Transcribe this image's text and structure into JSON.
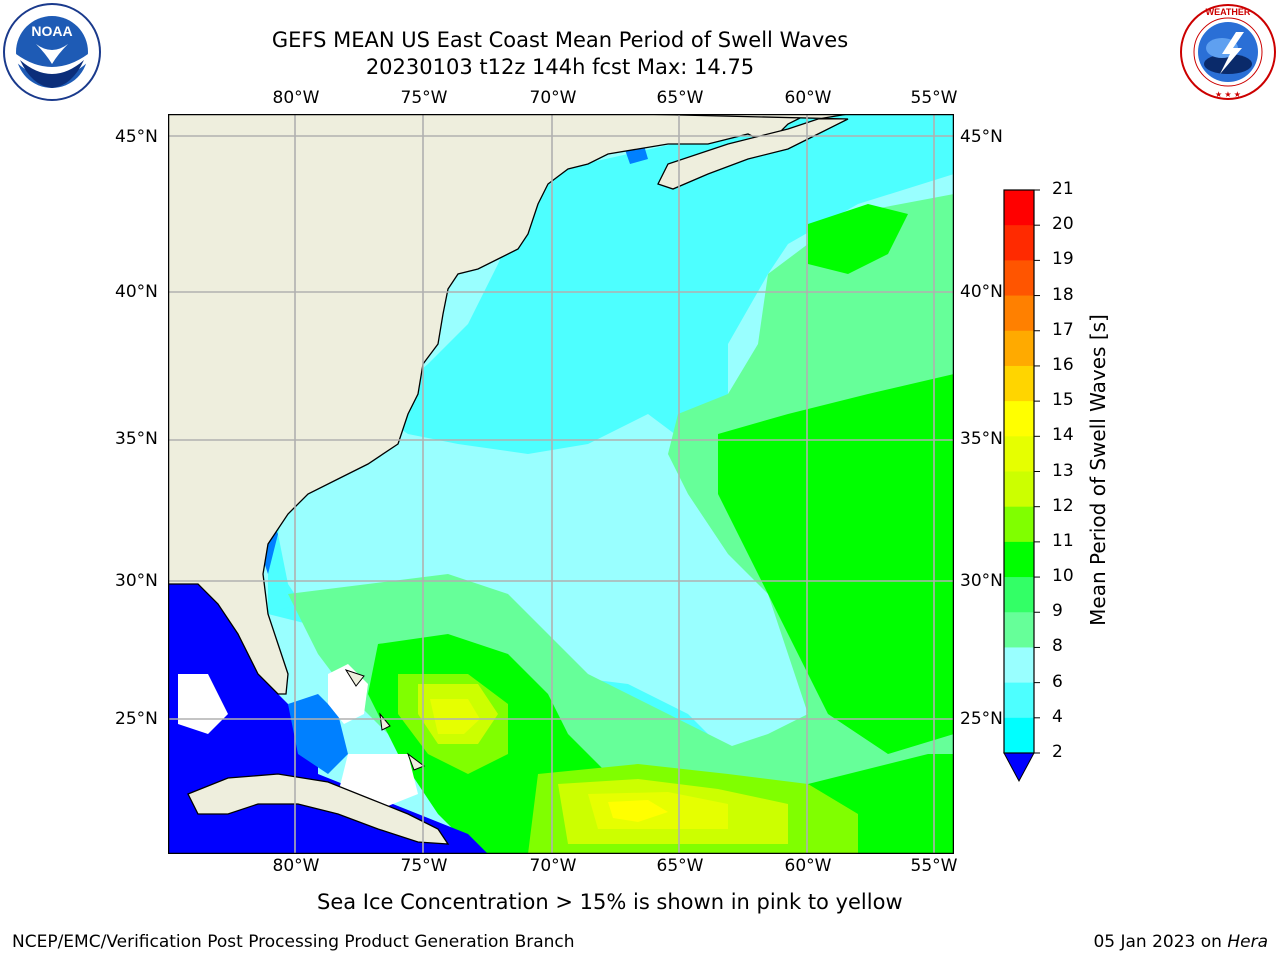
{
  "title": {
    "line1": "GEFS MEAN US East Coast Mean Period of Swell Waves",
    "line2": "20230103 t12z 144h fcst   Max: 14.75"
  },
  "logos": {
    "left": {
      "icon": "noaa-logo-icon",
      "text": "NOAA",
      "ring_text": "NATIONAL OCEANIC AND ATMOSPHERIC ADMINISTRATION · U.S. DEPARTMENT OF COMMERCE"
    },
    "right": {
      "icon": "nws-logo-icon",
      "ring_text": "NATIONAL WEATHER SERVICE"
    }
  },
  "map": {
    "projection": "equirectangular",
    "lon_range": [
      -85,
      -54.5
    ],
    "lat_range": [
      20.5,
      46.5
    ],
    "grid": true,
    "lon_ticks": [
      "80°W",
      "75°W",
      "70°W",
      "65°W",
      "60°W",
      "55°W"
    ],
    "lat_ticks": [
      "45°N",
      "40°N",
      "35°N",
      "30°N",
      "25°N"
    ],
    "land_color": "#eeeedd",
    "grid_color": "#b0b0b0"
  },
  "colorbar": {
    "label": "Mean Period of Swell Waves [s]",
    "ticks": [
      "21",
      "20",
      "19",
      "18",
      "17",
      "16",
      "15",
      "14",
      "13",
      "12",
      "11",
      "10",
      "9",
      "8",
      "6",
      "4",
      "2"
    ],
    "colors_top_to_bottom": [
      "#ff0000",
      "#ff2a00",
      "#ff5500",
      "#ff8000",
      "#ffaa00",
      "#ffd500",
      "#ffff00",
      "#e6ff00",
      "#ccff00",
      "#80ff00",
      "#00ff00",
      "#33ff66",
      "#66ff99",
      "#99ffff",
      "#4dffff",
      "#00ffff",
      "#00aaff",
      "#0055ff"
    ],
    "extend": "min",
    "extend_color": "#0000ff"
  },
  "legend_colors": {
    "lt4": "#0000ff",
    "c4_6": "#0080ff",
    "c6_8": "#4dffff",
    "c8_9": "#99ffff",
    "c9_10": "#66ff99",
    "c10_11": "#00ff00",
    "c11_12": "#80ff00",
    "c12_13": "#ccff00",
    "c13_14": "#e6ff00",
    "c14_15": "#ffff00"
  },
  "note": "Sea Ice Concentration > 15% is shown in pink to yellow",
  "footer": {
    "left": "NCEP/EMC/Verification Post Processing Product Generation Branch",
    "right_date": "05 Jan 2023 on ",
    "right_host": "Hera"
  }
}
